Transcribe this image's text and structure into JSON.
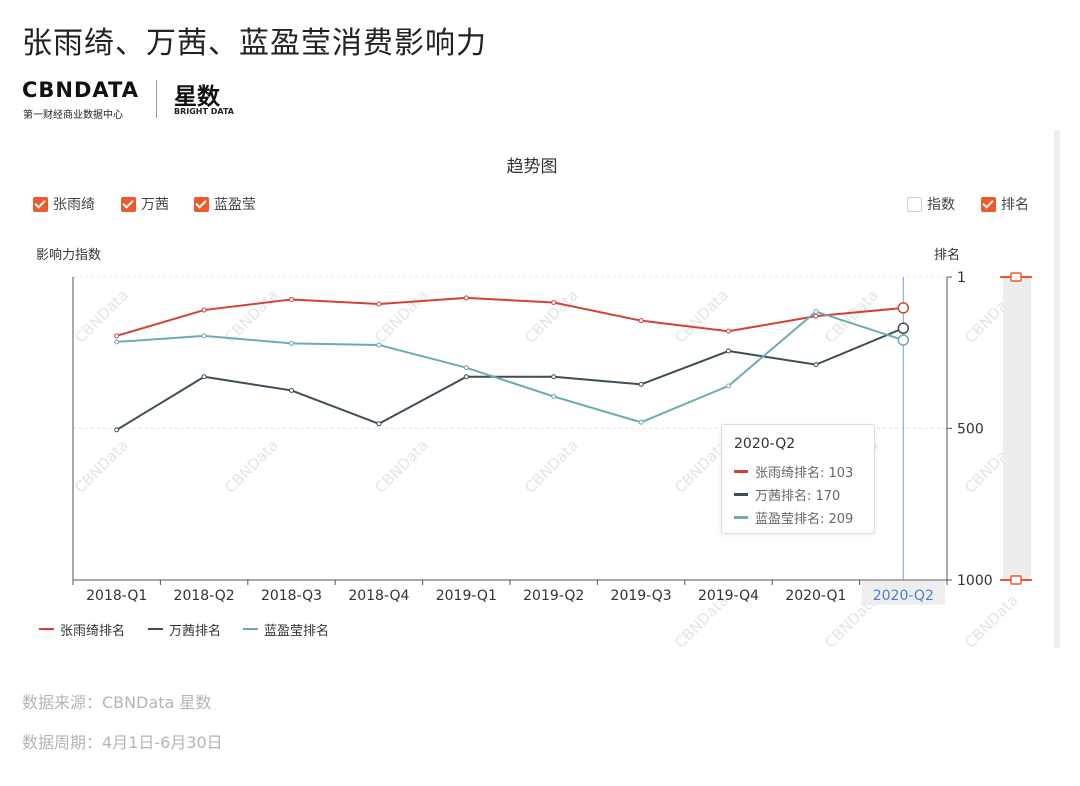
{
  "page": {
    "title": "张雨绮、万茜、蓝盈莹消费影响力",
    "brand": {
      "name": "CBNDATA",
      "subtitle": "第一财经商业数据中心",
      "product": "星数",
      "product_sub": "BRIGHT DATA"
    },
    "footer": {
      "source": "数据来源：CBNData 星数",
      "period": "数据周期：4月1日-6月30日"
    }
  },
  "colors": {
    "zhang": "#d0433b",
    "wan": "#3d4d57",
    "lan": "#6ea9b4",
    "checkbox": "#ec5a2b",
    "cursor_line": "#7a9fd6",
    "highlight_tick": "#4a7fd0"
  },
  "toolbar": {
    "legend_people": [
      {
        "label": "张雨绮",
        "checked": true
      },
      {
        "label": "万茜",
        "checked": true
      },
      {
        "label": "蓝盈莹",
        "checked": true
      }
    ],
    "legend_metrics": [
      {
        "label": "指数",
        "checked": false
      },
      {
        "label": "排名",
        "checked": true
      }
    ]
  },
  "watermark": "CBNData",
  "tooltip": {
    "title": "2020-Q2",
    "rows": [
      {
        "text": "张雨绮排名: 103",
        "color_key": "zhang"
      },
      {
        "text": "万茜排名: 170",
        "color_key": "wan"
      },
      {
        "text": "蓝盈莹排名: 209",
        "color_key": "lan"
      }
    ]
  },
  "chart_data": {
    "type": "line",
    "title": "趋势图",
    "ylabel_left": "影响力指数",
    "ylabel_right": "排名",
    "x_axis": [
      "2018-Q1",
      "2018-Q2",
      "2018-Q3",
      "2018-Q4",
      "2019-Q1",
      "2019-Q2",
      "2019-Q3",
      "2019-Q4",
      "2020-Q1",
      "2020-Q2"
    ],
    "highlighted_category": "2020-Q2",
    "y_right": {
      "inverse": true,
      "min": 1,
      "max": 1000,
      "ticks": [
        1,
        500,
        1000
      ]
    },
    "series": [
      {
        "name": "张雨绮排名",
        "color_key": "zhang",
        "values": [
          195,
          110,
          75,
          90,
          70,
          85,
          145,
          180,
          130,
          103
        ]
      },
      {
        "name": "万茜排名",
        "color_key": "wan",
        "values": [
          505,
          330,
          375,
          485,
          330,
          330,
          355,
          245,
          290,
          170
        ]
      },
      {
        "name": "蓝盈莹排名",
        "color_key": "lan",
        "values": [
          215,
          195,
          220,
          225,
          300,
          395,
          480,
          360,
          115,
          209
        ]
      }
    ],
    "legend_position": "bottom-left",
    "grid": true
  }
}
